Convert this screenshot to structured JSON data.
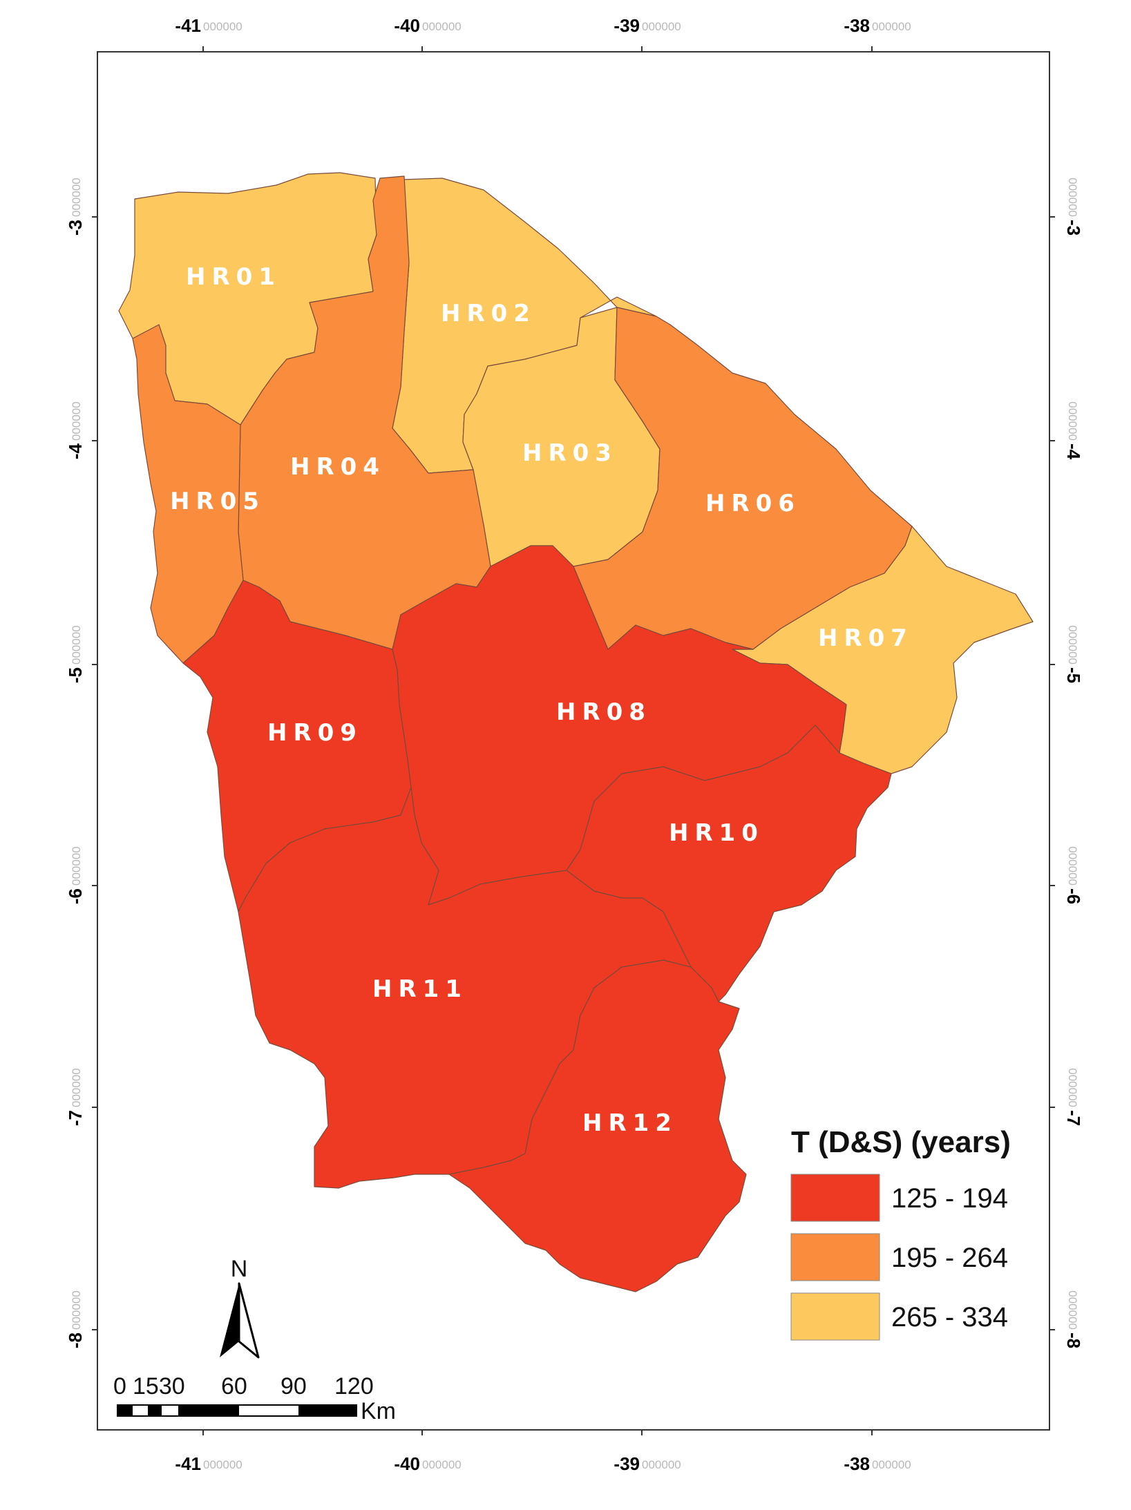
{
  "map": {
    "regions": [
      {
        "id": "HR01",
        "label": "HR01",
        "class": "265 - 334"
      },
      {
        "id": "HR02",
        "label": "HR02",
        "class": "265 - 334"
      },
      {
        "id": "HR03",
        "label": "HR03",
        "class": "265 - 334"
      },
      {
        "id": "HR04",
        "label": "HR04",
        "class": "195 - 264"
      },
      {
        "id": "HR05",
        "label": "HR05",
        "class": "195 - 264"
      },
      {
        "id": "HR06",
        "label": "HR06",
        "class": "195 - 264"
      },
      {
        "id": "HR07",
        "label": "HR07",
        "class": "265 - 334"
      },
      {
        "id": "HR08",
        "label": "HR08",
        "class": "125 - 194"
      },
      {
        "id": "HR09",
        "label": "HR09",
        "class": "125 - 194"
      },
      {
        "id": "HR10",
        "label": "HR10",
        "class": "125 - 194"
      },
      {
        "id": "HR11",
        "label": "HR11",
        "class": "125 - 194"
      },
      {
        "id": "HR12",
        "label": "HR12",
        "class": "125 - 194"
      }
    ]
  },
  "axes": {
    "longitude": [
      {
        "major": "-41",
        "minor": "000000"
      },
      {
        "major": "-40",
        "minor": "000000"
      },
      {
        "major": "-39",
        "minor": "000000"
      },
      {
        "major": "-38",
        "minor": "000000"
      }
    ],
    "latitude": [
      {
        "major": "-3",
        "minor": "000000"
      },
      {
        "major": "-4",
        "minor": "000000"
      },
      {
        "major": "-5",
        "minor": "000000"
      },
      {
        "major": "-6",
        "minor": "000000"
      },
      {
        "major": "-7",
        "minor": "000000"
      },
      {
        "major": "-8",
        "minor": "000000"
      }
    ]
  },
  "legend": {
    "title": "T (D&S) (years)",
    "items": [
      {
        "label": "125 - 194",
        "color": "#ee3a22"
      },
      {
        "label": "195 - 264",
        "color": "#f98d3d"
      },
      {
        "label": "265 - 334",
        "color": "#fdc95f"
      }
    ]
  },
  "scale_bar": {
    "labels": [
      "0",
      "1530",
      "60",
      "90",
      "120"
    ],
    "unit": "Km"
  },
  "north_arrow": {
    "label": "N",
    "icon": "north-arrow-icon"
  }
}
